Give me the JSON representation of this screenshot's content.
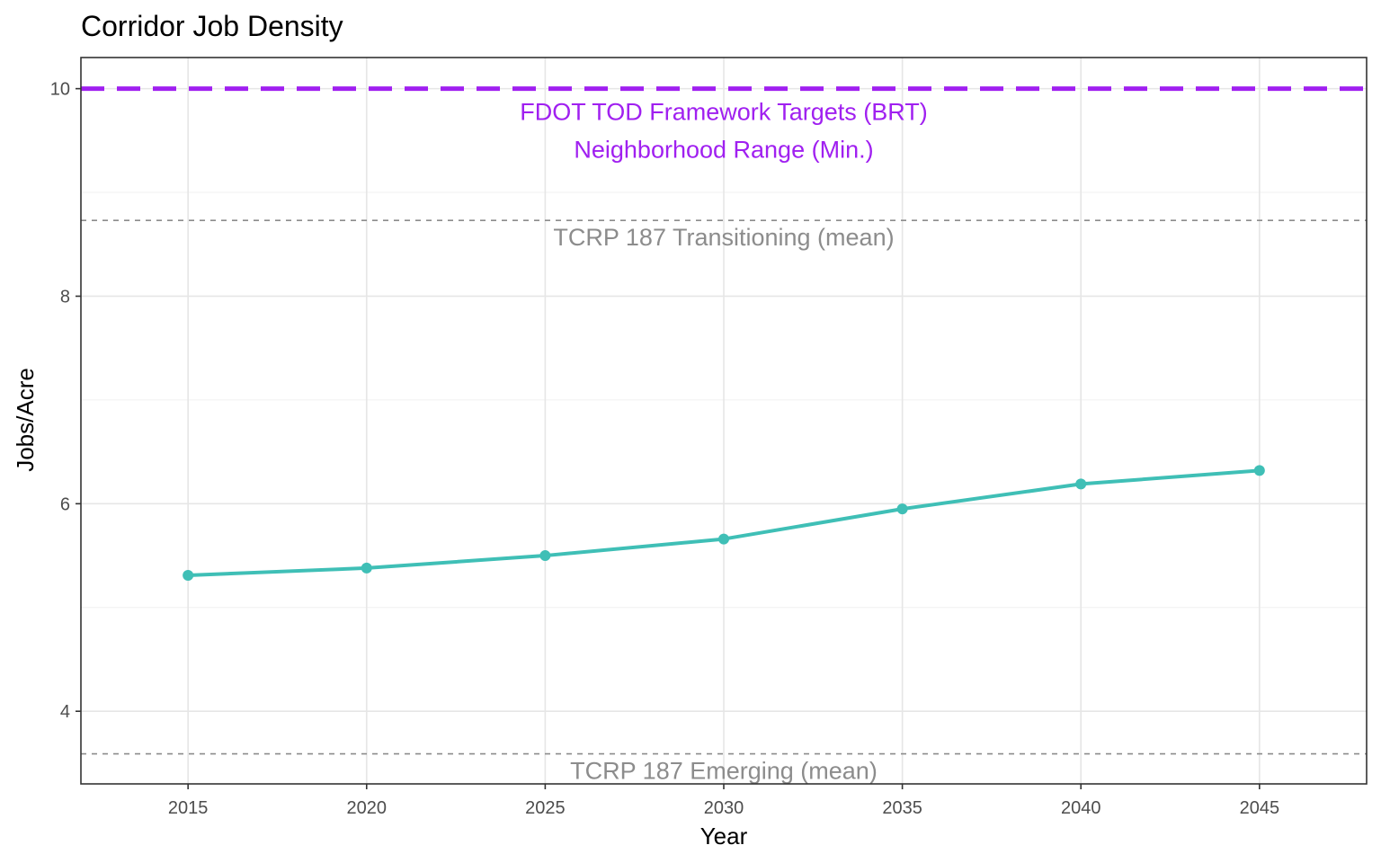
{
  "chart_data": {
    "type": "line",
    "title": "Corridor Job Density",
    "xlabel": "Year",
    "ylabel": "Jobs/Acre",
    "x": [
      2015,
      2020,
      2025,
      2030,
      2035,
      2040,
      2045
    ],
    "series": [
      {
        "values": [
          5.31,
          5.38,
          5.5,
          5.66,
          5.95,
          6.19,
          6.32
        ],
        "color": "#3fbfb6"
      }
    ],
    "xlim": [
      2012,
      2048
    ],
    "ylim": [
      3.3,
      10.3
    ],
    "xticks": [
      "2015",
      "2020",
      "2025",
      "2030",
      "2035",
      "2040",
      "2045"
    ],
    "yticks": [
      "4",
      "6",
      "8",
      "10"
    ],
    "reference_lines": [
      {
        "y": 10.0,
        "label": "FDOT TOD Framework Targets (BRT)",
        "label2": "Neighborhood Range (Min.)",
        "color": "#a020f0",
        "style": "dashed-thick"
      },
      {
        "y": 8.73,
        "label": "TCRP 187 Transitioning (mean)",
        "color": "#8c8c8c",
        "style": "dashed-thin"
      },
      {
        "y": 3.59,
        "label": "TCRP 187 Emerging (mean)",
        "color": "#8c8c8c",
        "style": "dashed-thin"
      }
    ],
    "grid": true,
    "legend": "none"
  }
}
